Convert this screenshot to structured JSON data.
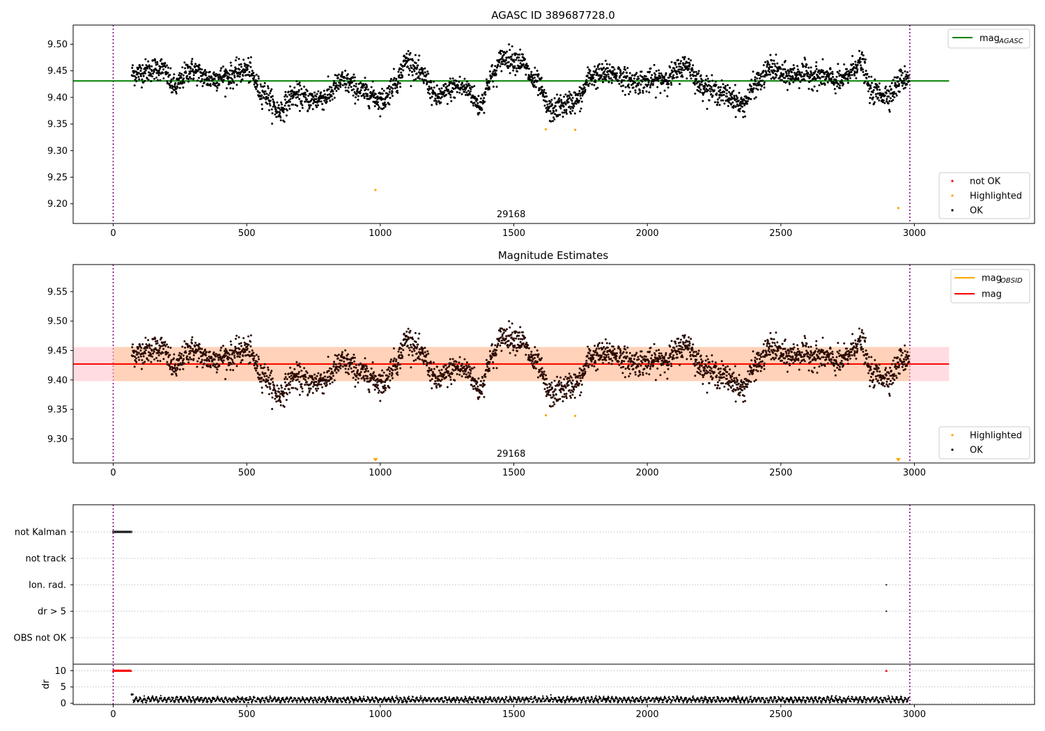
{
  "chart_data": [
    {
      "type": "scatter",
      "title": "AGASC ID 389687728.0",
      "xlim": [
        -150,
        3450
      ],
      "ylim": [
        9.163,
        9.536
      ],
      "xticks": [
        0,
        500,
        1000,
        1500,
        2000,
        2500,
        3000
      ],
      "xtick_labels": [
        "0",
        "500",
        "1000",
        "1500",
        "2000",
        "2500",
        "3000"
      ],
      "yticks": [
        9.2,
        9.25,
        9.3,
        9.35,
        9.4,
        9.45,
        9.5
      ],
      "ytick_labels": [
        "9.20",
        "9.25",
        "9.30",
        "9.35",
        "9.40",
        "9.45",
        "9.50"
      ],
      "obs_boundaries": [
        0,
        2983
      ],
      "obsid_label": {
        "x": 1490,
        "text": "29168"
      },
      "agasc_mag": 9.431,
      "agasc_line_x": [
        -150,
        3130
      ],
      "agasc_color": "#008000",
      "ok_color": "#000000",
      "highlight_color": "#ffa500",
      "notok_color": "#ff0000",
      "ok_x_range": [
        70,
        2980
      ],
      "highlighted_points": [
        {
          "x": 982,
          "y": 9.226
        },
        {
          "x": 1620,
          "y": 9.34
        },
        {
          "x": 1730,
          "y": 9.339
        },
        {
          "x": 2940,
          "y": 9.192
        }
      ],
      "legend_top": [
        {
          "label": "mag",
          "sub": "AGASC",
          "color": "#008000",
          "kind": "line"
        }
      ],
      "legend_bottom": [
        {
          "label": "not OK",
          "color": "#ff0000",
          "kind": "dot"
        },
        {
          "label": "Highlighted",
          "color": "#ffa500",
          "kind": "dot"
        },
        {
          "label": "OK",
          "color": "#000000",
          "kind": "dot"
        }
      ]
    },
    {
      "type": "scatter",
      "title": "Magnitude Estimates",
      "xlim": [
        -150,
        3450
      ],
      "ylim": [
        9.259,
        9.596
      ],
      "xticks": [
        0,
        500,
        1000,
        1500,
        2000,
        2500,
        3000
      ],
      "xtick_labels": [
        "0",
        "500",
        "1000",
        "1500",
        "2000",
        "2500",
        "3000"
      ],
      "yticks": [
        9.3,
        9.35,
        9.4,
        9.45,
        9.5,
        9.55
      ],
      "ytick_labels": [
        "9.30",
        "9.35",
        "9.40",
        "9.45",
        "9.50",
        "9.55"
      ],
      "obs_boundaries": [
        0,
        2983
      ],
      "obsid_label": {
        "x": 1490,
        "text": "29168"
      },
      "mag": 9.427,
      "mag_band": [
        9.398,
        9.456
      ],
      "mag_line_x": [
        -150,
        3130
      ],
      "mag_color": "#ff0000",
      "obsid_mag": 9.427,
      "obsid_band": [
        9.398,
        9.456
      ],
      "obsid_line_x": [
        0,
        2983
      ],
      "obsid_color": "#ffa500",
      "band_color": "#ffc0cb",
      "ok_x_range": [
        70,
        2980
      ],
      "highlighted_points": [
        {
          "x": 1620,
          "y": 9.34
        },
        {
          "x": 1730,
          "y": 9.339
        }
      ],
      "offscale_markers": [
        982,
        2940
      ],
      "legend_top": [
        {
          "label": "mag",
          "sub": "OBSID",
          "color": "#ffa500",
          "kind": "line"
        },
        {
          "label": "mag",
          "sub": "",
          "color": "#ff0000",
          "kind": "line"
        }
      ],
      "legend_bottom": [
        {
          "label": "Highlighted",
          "color": "#ffa500",
          "kind": "dot"
        },
        {
          "label": "OK",
          "color": "#000000",
          "kind": "dot"
        }
      ]
    },
    {
      "type": "scatter",
      "title": "",
      "xlim": [
        -150,
        3450
      ],
      "xticks": [
        0,
        500,
        1000,
        1500,
        2000,
        2500,
        3000
      ],
      "xtick_labels": [
        "0",
        "500",
        "1000",
        "1500",
        "2000",
        "2500",
        "3000"
      ],
      "obs_boundaries": [
        0,
        2983
      ],
      "flag_rows": [
        "not Kalman",
        "not track",
        "Ion. rad.",
        "dr > 5",
        "OBS not OK"
      ],
      "flags": {
        "not Kalman": {
          "x_range": [
            0,
            68
          ]
        },
        "Ion. rad.": {
          "x": [
            2895
          ]
        },
        "dr > 5": {
          "x": [
            2895
          ]
        }
      },
      "dr": {
        "ylabel": "dr",
        "ylim": [
          -0.4,
          12
        ],
        "yticks": [
          0,
          5,
          10
        ],
        "ytick_labels": [
          "0",
          "5",
          "10"
        ],
        "clipped_value": 10,
        "clipped_x_range": [
          0,
          68
        ],
        "clipped_extra_x": [
          2895
        ],
        "typical_range": [
          0.3,
          2.5
        ],
        "data_x_range": [
          68,
          2980
        ]
      }
    }
  ]
}
